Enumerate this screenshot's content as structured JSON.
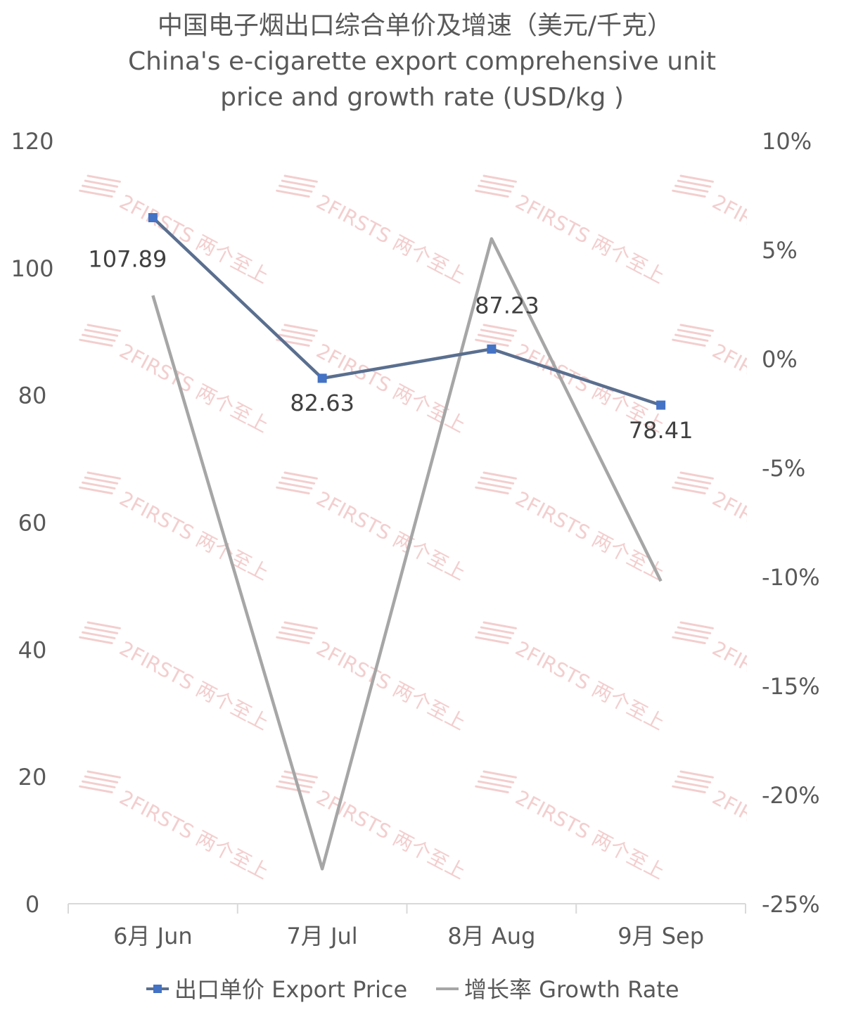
{
  "chart_data": {
    "type": "line",
    "title_cn": "中国电子烟出口综合单价及增速（美元/千克）",
    "title_en_line1": "China's e-cigarette export comprehensive unit",
    "title_en_line2": "price and growth rate (USD/kg )",
    "categories": [
      "6月 Jun",
      "7月 Jul",
      "8月 Aug",
      "9月 Sep"
    ],
    "y_left": {
      "min": 0,
      "max": 120,
      "step": 20,
      "ticks": [
        "0",
        "20",
        "40",
        "60",
        "80",
        "100",
        "120"
      ]
    },
    "y_right": {
      "min": -25,
      "max": 10,
      "step": 5,
      "ticks": [
        "-25%",
        "-20%",
        "-15%",
        "-10%",
        "-5%",
        "0%",
        "5%",
        "10%"
      ]
    },
    "series": [
      {
        "name": "出口单价 Export Price",
        "axis": "left",
        "values": [
          107.89,
          82.63,
          87.23,
          78.41
        ],
        "labels": [
          "107.89",
          "82.63",
          "87.23",
          "78.41"
        ],
        "color": "#5a6f8f",
        "marker_color": "#4472c4"
      },
      {
        "name": "增长率 Growth Rate",
        "axis": "right",
        "values": [
          2.9,
          -23.4,
          5.5,
          -10.2
        ],
        "color": "#a6a6a6"
      }
    ],
    "legend_position": "bottom",
    "grid": false
  },
  "watermark": {
    "text": "2FIRSTS 两个至上",
    "color": "#f2c9c9"
  }
}
